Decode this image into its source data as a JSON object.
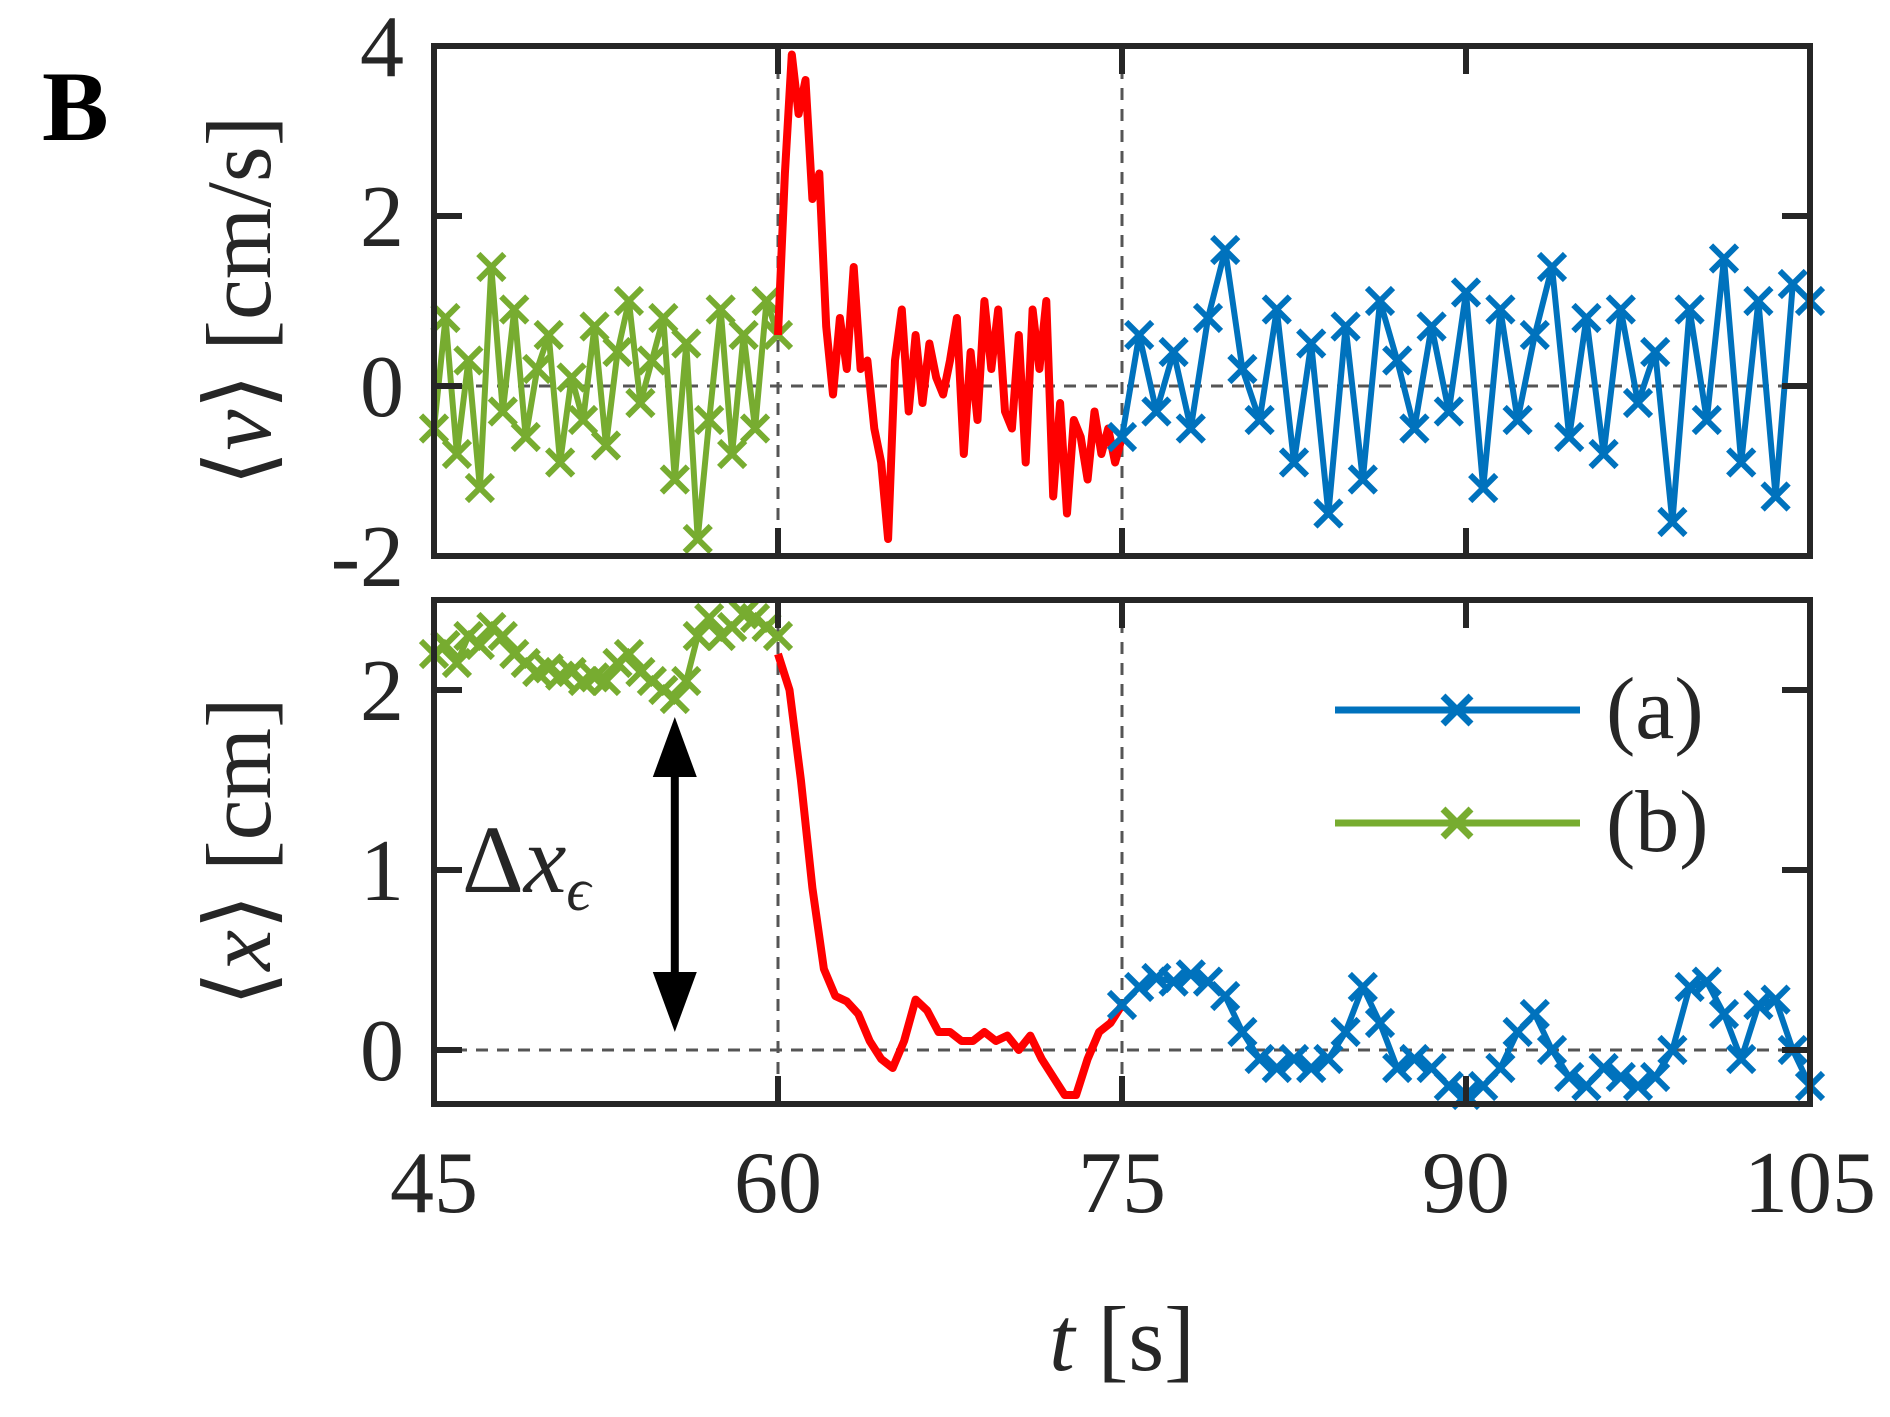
{
  "panel_label": "B",
  "legend": {
    "a_label": "(a)",
    "b_label": "(b)"
  },
  "annotation": {
    "delta": "Δ",
    "x": "x",
    "eps": "ϵ"
  },
  "colors": {
    "series_a": "#0072BD",
    "series_b": "#77AC30",
    "transition": "#FF0000",
    "arrow": "#000000",
    "axes": "#262626"
  },
  "chart_data": [
    {
      "type": "line",
      "title": "",
      "ylabel": "⟨v⟩ [cm/s]",
      "ylabel_parts": {
        "open": "⟨",
        "var": "v",
        "close": "⟩",
        "unit": "[cm/s]"
      },
      "xlim": [
        45,
        105
      ],
      "ylim": [
        -2,
        4
      ],
      "yticks": [
        -2,
        0,
        2,
        4
      ],
      "ytick_labels": [
        "-2",
        "0",
        "2",
        "4"
      ],
      "xticks": [
        45,
        60,
        75,
        90,
        105
      ],
      "vlines": [
        60,
        75
      ],
      "hline": 0,
      "series": [
        {
          "name": "(b)",
          "marker": "x",
          "x": [
            45.0,
            45.5,
            46.0,
            46.5,
            47.0,
            47.5,
            48.0,
            48.5,
            49.0,
            49.5,
            50.0,
            50.5,
            51.0,
            51.5,
            52.0,
            52.5,
            53.0,
            53.5,
            54.0,
            54.5,
            55.0,
            55.5,
            56.0,
            56.5,
            57.0,
            57.5,
            58.0,
            58.5,
            59.0,
            59.5,
            60.0
          ],
          "values": [
            -0.5,
            0.8,
            -0.8,
            0.3,
            -1.2,
            1.4,
            -0.3,
            0.9,
            -0.6,
            0.2,
            0.6,
            -0.9,
            0.1,
            -0.4,
            0.7,
            -0.7,
            0.4,
            1.0,
            -0.2,
            0.3,
            0.8,
            -1.1,
            0.5,
            -1.8,
            -0.4,
            0.9,
            -0.8,
            0.6,
            -0.5,
            1.0,
            0.6
          ]
        },
        {
          "name": "transition",
          "marker": "none",
          "x": [
            60.0,
            60.3,
            60.6,
            60.9,
            61.2,
            61.5,
            61.8,
            62.1,
            62.4,
            62.7,
            63.0,
            63.3,
            63.6,
            63.9,
            64.2,
            64.5,
            64.8,
            65.1,
            65.4,
            65.7,
            66.0,
            66.3,
            66.6,
            66.9,
            67.2,
            67.5,
            67.8,
            68.1,
            68.4,
            68.7,
            69.0,
            69.3,
            69.6,
            69.9,
            70.2,
            70.5,
            70.8,
            71.1,
            71.4,
            71.7,
            72.0,
            72.3,
            72.6,
            72.9,
            73.2,
            73.5,
            73.8,
            74.1,
            74.4,
            74.7,
            75.0
          ],
          "values": [
            0.6,
            2.5,
            3.9,
            3.2,
            3.6,
            2.2,
            2.5,
            0.7,
            -0.1,
            0.8,
            0.2,
            1.4,
            0.2,
            0.3,
            -0.5,
            -0.9,
            -1.8,
            0.3,
            0.9,
            -0.3,
            0.6,
            -0.2,
            0.5,
            0.1,
            -0.1,
            0.3,
            0.8,
            -0.8,
            0.4,
            -0.4,
            1.0,
            0.2,
            0.9,
            -0.3,
            -0.5,
            0.6,
            -0.9,
            0.9,
            0.2,
            1.0,
            -1.3,
            -0.2,
            -1.5,
            -0.4,
            -0.6,
            -1.1,
            -0.3,
            -0.8,
            -0.5,
            -0.9,
            -0.6
          ]
        },
        {
          "name": "(a)",
          "marker": "x",
          "x": [
            75.0,
            75.75,
            76.5,
            77.25,
            78.0,
            78.75,
            79.5,
            80.25,
            81.0,
            81.75,
            82.5,
            83.25,
            84.0,
            84.75,
            85.5,
            86.25,
            87.0,
            87.75,
            88.5,
            89.25,
            90.0,
            90.75,
            91.5,
            92.25,
            93.0,
            93.75,
            94.5,
            95.25,
            96.0,
            96.75,
            97.5,
            98.25,
            99.0,
            99.75,
            100.5,
            101.25,
            102.0,
            102.75,
            103.5,
            104.25,
            105.0
          ],
          "values": [
            -0.6,
            0.6,
            -0.3,
            0.4,
            -0.5,
            0.8,
            1.6,
            0.2,
            -0.4,
            0.9,
            -0.9,
            0.5,
            -1.5,
            0.7,
            -1.1,
            1.0,
            0.3,
            -0.5,
            0.7,
            -0.3,
            1.1,
            -1.2,
            0.9,
            -0.4,
            0.6,
            1.4,
            -0.6,
            0.8,
            -0.8,
            0.9,
            -0.2,
            0.4,
            -1.6,
            0.9,
            -0.4,
            1.5,
            -0.9,
            1.0,
            -1.3,
            1.2,
            1.0
          ]
        }
      ]
    },
    {
      "type": "line",
      "title": "",
      "ylabel": "⟨x⟩ [cm]",
      "ylabel_parts": {
        "open": "⟨",
        "var": "x",
        "close": "⟩",
        "unit": "[cm]"
      },
      "xlabel": "t [s]",
      "xlabel_parts": {
        "var": "t",
        "unit": "[s]"
      },
      "xlim": [
        45,
        105
      ],
      "ylim": [
        -0.3,
        2.5
      ],
      "yticks": [
        0,
        1,
        2
      ],
      "ytick_labels": [
        "0",
        "1",
        "2"
      ],
      "xticks": [
        45,
        60,
        75,
        90,
        105
      ],
      "xtick_labels": [
        "45",
        "60",
        "75",
        "90",
        "105"
      ],
      "vlines": [
        60,
        75
      ],
      "hline": 0,
      "arrow": {
        "x": 55.5,
        "y_from": 1.85,
        "y_to": 0.1
      },
      "series": [
        {
          "name": "(b)",
          "marker": "x",
          "x": [
            45.0,
            45.5,
            46.0,
            46.5,
            47.0,
            47.5,
            48.0,
            48.5,
            49.0,
            49.5,
            50.0,
            50.5,
            51.0,
            51.5,
            52.0,
            52.5,
            53.0,
            53.5,
            54.0,
            54.5,
            55.0,
            55.5,
            56.0,
            56.5,
            57.0,
            57.5,
            58.0,
            58.5,
            59.0,
            59.5,
            60.0
          ],
          "values": [
            2.2,
            2.25,
            2.15,
            2.3,
            2.25,
            2.35,
            2.3,
            2.2,
            2.15,
            2.1,
            2.12,
            2.08,
            2.1,
            2.05,
            2.07,
            2.05,
            2.15,
            2.2,
            2.1,
            2.05,
            2.0,
            1.95,
            2.05,
            2.3,
            2.4,
            2.3,
            2.35,
            2.42,
            2.4,
            2.35,
            2.3
          ]
        },
        {
          "name": "transition",
          "marker": "none",
          "x": [
            60.0,
            60.5,
            61.0,
            61.5,
            62.0,
            62.5,
            63.0,
            63.5,
            64.0,
            64.5,
            65.0,
            65.5,
            66.0,
            66.5,
            67.0,
            67.5,
            68.0,
            68.5,
            69.0,
            69.5,
            70.0,
            70.5,
            71.0,
            71.5,
            72.0,
            72.5,
            73.0,
            73.5,
            74.0,
            74.5,
            75.0
          ],
          "values": [
            2.2,
            2.0,
            1.5,
            0.9,
            0.45,
            0.3,
            0.27,
            0.2,
            0.05,
            -0.05,
            -0.1,
            0.05,
            0.28,
            0.22,
            0.1,
            0.1,
            0.05,
            0.05,
            0.1,
            0.05,
            0.08,
            0.0,
            0.08,
            -0.05,
            -0.15,
            -0.25,
            -0.25,
            -0.05,
            0.1,
            0.15,
            0.25
          ]
        },
        {
          "name": "(a)",
          "marker": "x",
          "x": [
            75.0,
            75.75,
            76.5,
            77.25,
            78.0,
            78.75,
            79.5,
            80.25,
            81.0,
            81.75,
            82.5,
            83.25,
            84.0,
            84.75,
            85.5,
            86.25,
            87.0,
            87.75,
            88.5,
            89.25,
            90.0,
            90.75,
            91.5,
            92.25,
            93.0,
            93.75,
            94.5,
            95.25,
            96.0,
            96.75,
            97.5,
            98.25,
            99.0,
            99.75,
            100.5,
            101.25,
            102.0,
            102.75,
            103.5,
            104.25,
            105.0
          ],
          "values": [
            0.25,
            0.35,
            0.4,
            0.38,
            0.42,
            0.38,
            0.3,
            0.1,
            -0.05,
            -0.1,
            -0.05,
            -0.1,
            -0.05,
            0.1,
            0.35,
            0.15,
            -0.1,
            -0.05,
            -0.1,
            -0.2,
            -0.25,
            -0.2,
            -0.1,
            0.1,
            0.2,
            0.0,
            -0.15,
            -0.2,
            -0.1,
            -0.15,
            -0.2,
            -0.15,
            0.0,
            0.35,
            0.38,
            0.2,
            -0.05,
            0.25,
            0.28,
            0.0,
            -0.2
          ]
        }
      ]
    }
  ]
}
